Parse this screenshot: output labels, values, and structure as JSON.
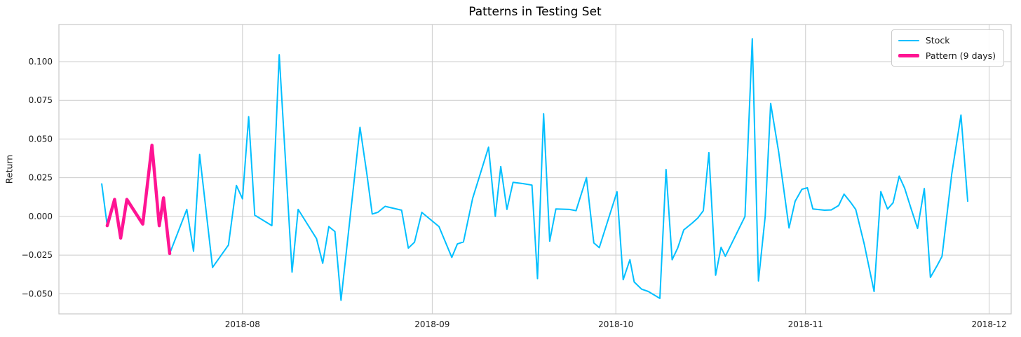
{
  "figure": {
    "title": "Patterns in Testing Set"
  },
  "chart_data": {
    "type": "line",
    "title": "Patterns in Testing Set",
    "xlabel": "",
    "ylabel": "Return",
    "grid": true,
    "legend_position": "upper right",
    "x_unit": "calendar days, day 0 = first plotted trading day (mid-July 2018)",
    "xlim": [
      -7,
      148.6
    ],
    "ylim": [
      -0.063,
      0.124
    ],
    "x_ticks": {
      "positions": [
        23,
        54,
        84,
        115,
        145
      ],
      "labels": [
        "2018-08",
        "2018-09",
        "2018-10",
        "2018-11",
        "2018-12"
      ]
    },
    "y_ticks": {
      "positions": [
        0.1,
        0.075,
        0.05,
        0.025,
        0.0,
        -0.025,
        -0.05
      ],
      "labels": [
        "0.100",
        "0.075",
        "0.050",
        "0.025",
        "0.000",
        "−0.025",
        "−0.050"
      ]
    },
    "styles": {
      "grid_color": "#cccccc",
      "spine_color": "#c8c8c8",
      "text_color": "#1a1a1a",
      "background": "#ffffff"
    },
    "series": [
      {
        "name": "Stock",
        "color": "#00BFFF",
        "line_width": 2,
        "points": [
          [
            0,
            0.021
          ],
          [
            0.9,
            -0.006
          ],
          [
            2.1,
            0.011
          ],
          [
            3.1,
            -0.014
          ],
          [
            4.1,
            0.011
          ],
          [
            6.7,
            -0.005
          ],
          [
            8.2,
            0.046
          ],
          [
            9.4,
            -0.006
          ],
          [
            10.1,
            0.012
          ],
          [
            11.1,
            -0.024
          ],
          [
            13.9,
            0.0045
          ],
          [
            15,
            -0.0225
          ],
          [
            16,
            0.04
          ],
          [
            18.1,
            -0.033
          ],
          [
            20.7,
            -0.0185
          ],
          [
            22,
            0.02
          ],
          [
            23,
            0.0114
          ],
          [
            24,
            0.0644
          ],
          [
            25,
            0.0008
          ],
          [
            27.8,
            -0.006
          ],
          [
            29,
            0.1045
          ],
          [
            31.1,
            -0.036
          ],
          [
            32.1,
            0.0045
          ],
          [
            35.1,
            -0.0144
          ],
          [
            36.1,
            -0.0303
          ],
          [
            37.1,
            -0.0066
          ],
          [
            38.1,
            -0.0098
          ],
          [
            39.1,
            -0.0542
          ],
          [
            42.2,
            0.0576
          ],
          [
            43.3,
            0.028
          ],
          [
            44.2,
            0.0015
          ],
          [
            45.1,
            0.0026
          ],
          [
            46.3,
            0.0065
          ],
          [
            49,
            0.004
          ],
          [
            50.1,
            -0.0205
          ],
          [
            51.1,
            -0.0167
          ],
          [
            52.3,
            0.0026
          ],
          [
            55.1,
            -0.0066
          ],
          [
            57.2,
            -0.0265
          ],
          [
            58.1,
            -0.0178
          ],
          [
            59.1,
            -0.0165
          ],
          [
            60.6,
            0.0116
          ],
          [
            63.2,
            0.0447
          ],
          [
            64.3,
            0
          ],
          [
            65.2,
            0.0322
          ],
          [
            66.2,
            0.0045
          ],
          [
            67.2,
            0.022
          ],
          [
            68.8,
            0.0212
          ],
          [
            70.3,
            0.0202
          ],
          [
            71.2,
            -0.0402
          ],
          [
            72.2,
            0.0664
          ],
          [
            73.2,
            -0.016
          ],
          [
            74.2,
            0.0048
          ],
          [
            76.4,
            0.0045
          ],
          [
            77.5,
            0.0037
          ],
          [
            79.2,
            0.025
          ],
          [
            80.4,
            -0.0171
          ],
          [
            81.3,
            -0.0202
          ],
          [
            84.2,
            0.0159
          ],
          [
            85.2,
            -0.0409
          ],
          [
            86.3,
            -0.028
          ],
          [
            87,
            -0.0424
          ],
          [
            88.2,
            -0.047
          ],
          [
            89.3,
            -0.0485
          ],
          [
            91.2,
            -0.053
          ],
          [
            92.2,
            0.0303
          ],
          [
            93.2,
            -0.028
          ],
          [
            94.1,
            -0.0205
          ],
          [
            95.1,
            -0.0087
          ],
          [
            96.4,
            -0.0046
          ],
          [
            97.4,
            -0.001
          ],
          [
            98.3,
            0.0037
          ],
          [
            99.2,
            0.0412
          ],
          [
            100.3,
            -0.038
          ],
          [
            101.2,
            -0.02
          ],
          [
            101.9,
            -0.0258
          ],
          [
            105.1,
            0
          ],
          [
            106.3,
            0.1148
          ],
          [
            107.3,
            -0.0417
          ],
          [
            108.4,
            0
          ],
          [
            109.3,
            0.073
          ],
          [
            110.6,
            0.0417
          ],
          [
            112.3,
            -0.0075
          ],
          [
            113.3,
            0.0098
          ],
          [
            114.4,
            0.0175
          ],
          [
            115.3,
            0.0185
          ],
          [
            116.2,
            0.0048
          ],
          [
            118.1,
            0.004
          ],
          [
            119.2,
            0.0042
          ],
          [
            120.4,
            0.007
          ],
          [
            121.3,
            0.0144
          ],
          [
            122.3,
            0.0094
          ],
          [
            123.2,
            0.0045
          ],
          [
            124.6,
            -0.018
          ],
          [
            126.2,
            -0.0485
          ],
          [
            127.3,
            0.016
          ],
          [
            128.4,
            0.0048
          ],
          [
            129.3,
            0.0088
          ],
          [
            130.3,
            0.026
          ],
          [
            131.2,
            0.0182
          ],
          [
            132.2,
            0.0055
          ],
          [
            133.3,
            -0.0078
          ],
          [
            134.4,
            0.018
          ],
          [
            135.4,
            -0.0394
          ],
          [
            136.5,
            -0.0318
          ],
          [
            137.3,
            -0.0258
          ],
          [
            138.9,
            0.0276
          ],
          [
            140.4,
            0.0655
          ],
          [
            141.5,
            0.0098
          ]
        ]
      },
      {
        "name": "Pattern (9 days)",
        "color": "#FF1493",
        "line_width": 4.5,
        "points": [
          [
            0.9,
            -0.006
          ],
          [
            2.1,
            0.011
          ],
          [
            3.1,
            -0.014
          ],
          [
            4.1,
            0.011
          ],
          [
            6.7,
            -0.005
          ],
          [
            8.2,
            0.046
          ],
          [
            9.4,
            -0.006
          ],
          [
            10.1,
            0.012
          ],
          [
            11.1,
            -0.024
          ]
        ]
      }
    ]
  }
}
